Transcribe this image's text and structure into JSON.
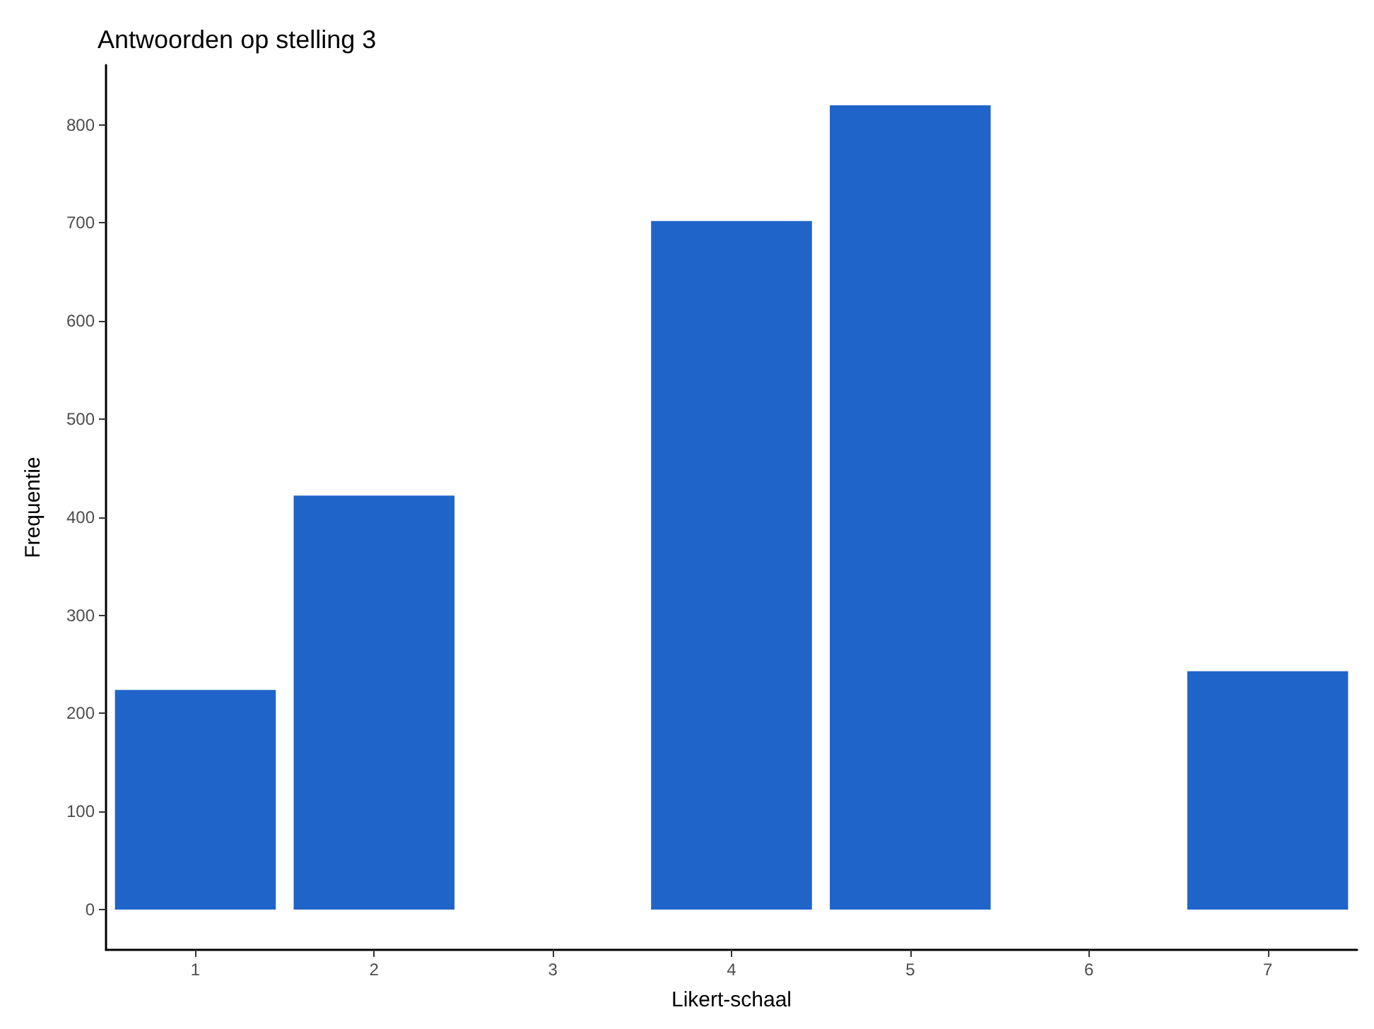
{
  "chart_data": {
    "type": "bar",
    "title": "Antwoorden op stelling 3",
    "xlabel": "Likert-schaal",
    "ylabel": "Frequentie",
    "categories": [
      "1",
      "2",
      "3",
      "4",
      "5",
      "6",
      "7"
    ],
    "values": [
      224,
      422,
      null,
      702,
      820,
      null,
      243
    ],
    "color": "#1f64c8",
    "ylim": [
      -41,
      861
    ],
    "yticks": [
      0,
      100,
      200,
      300,
      400,
      500,
      600,
      700,
      800
    ],
    "grid": false
  }
}
